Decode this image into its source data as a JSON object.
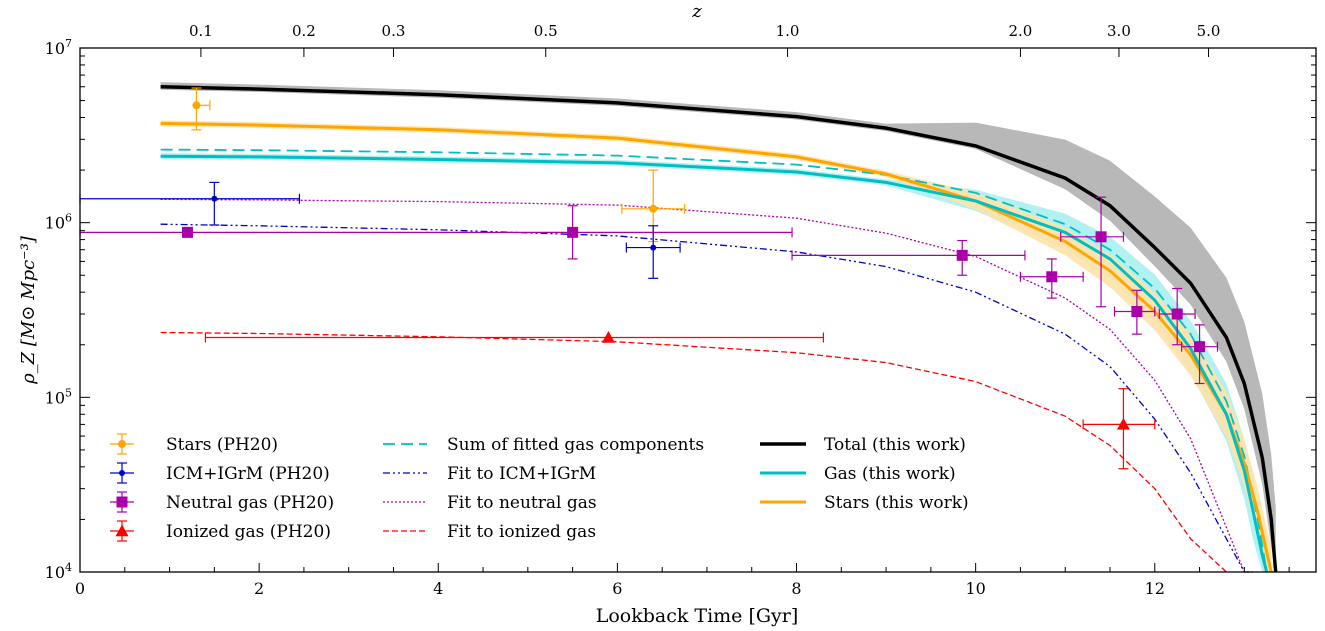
{
  "chart_data": {
    "type": "line",
    "xlabel": "Lookback Time [Gyr]",
    "ylabel": "ρ_Z [M⊙ Mpc⁻³]",
    "top_axis_label": "z",
    "xlim": [
      0,
      13.8
    ],
    "ylim": [
      10000,
      10000000
    ],
    "y_scale": "log",
    "x_ticks": [
      0,
      2,
      4,
      6,
      8,
      10,
      12
    ],
    "y_ticks": [
      {
        "value": 10000,
        "base": "10",
        "exp": "4"
      },
      {
        "value": 100000,
        "base": "10",
        "exp": "5"
      },
      {
        "value": 1000000,
        "base": "10",
        "exp": "6"
      },
      {
        "value": 10000000,
        "base": "10",
        "exp": "7"
      }
    ],
    "top_ticks": [
      {
        "z": "0.1",
        "t": 1.35
      },
      {
        "z": "0.2",
        "t": 2.5
      },
      {
        "z": "0.3",
        "t": 3.5
      },
      {
        "z": "0.5",
        "t": 5.2
      },
      {
        "z": "1.0",
        "t": 7.9
      },
      {
        "z": "2.0",
        "t": 10.5
      },
      {
        "z": "3.0",
        "t": 11.6
      },
      {
        "z": "5.0",
        "t": 12.6
      }
    ],
    "legend_col1": [
      "Stars (PH20)",
      "ICM+IGrM (PH20)",
      "Neutral gas (PH20)",
      "Ionized gas (PH20)"
    ],
    "legend_col2": [
      "Sum of fitted gas components",
      "Fit to ICM+IGrM",
      "Fit to neutral gas",
      "Fit to ionized gas"
    ],
    "legend_col3": [
      "Total (this work)",
      "Gas (this work)",
      "Stars (this work)"
    ],
    "colors": {
      "total": "#000000",
      "gas": "#00bfc4",
      "stars": "#ffa500",
      "icm": "#0000cc",
      "neutral": "#aa00aa",
      "ionized": "#ff0000",
      "total_band": "#b0b0b0",
      "gas_band": "#a8f0f0",
      "stars_band": "#ffe2a8"
    },
    "series": [
      {
        "name": "Total (this work)",
        "x": [
          0.9,
          2,
          4,
          6,
          8,
          9,
          10,
          11,
          11.5,
          12,
          12.4,
          12.8,
          13.0,
          13.2,
          13.3,
          13.35
        ],
        "y": [
          6000000,
          5820000,
          5400000,
          4850000,
          4050000,
          3480000,
          2750000,
          1800000,
          1250000,
          720000,
          450000,
          220000,
          120000,
          45000,
          20000,
          10000
        ]
      },
      {
        "name": "Gas (this work)",
        "x": [
          0.9,
          2,
          4,
          6,
          8,
          9,
          10,
          11,
          11.5,
          12,
          12.4,
          12.8,
          13.0,
          13.1,
          13.2,
          13.25
        ],
        "y": [
          2400000,
          2380000,
          2300000,
          2200000,
          1950000,
          1700000,
          1330000,
          880000,
          620000,
          360000,
          190000,
          80000,
          38000,
          22000,
          12500,
          10000
        ]
      },
      {
        "name": "Stars (this work)",
        "x": [
          0.9,
          2,
          4,
          6,
          8,
          9,
          10,
          11,
          11.5,
          12,
          12.4,
          12.8,
          13.0,
          13.15,
          13.25,
          13.3
        ],
        "y": [
          3700000,
          3620000,
          3400000,
          3050000,
          2380000,
          1900000,
          1330000,
          780000,
          530000,
          310000,
          175000,
          80000,
          42000,
          22000,
          13000,
          10000
        ]
      },
      {
        "name": "Sum of fitted gas components",
        "x": [
          0.9,
          2,
          4,
          6,
          8,
          9,
          10,
          11,
          11.5,
          12,
          12.4,
          12.8,
          13.0,
          13.15,
          13.25
        ],
        "y": [
          2620000,
          2600000,
          2530000,
          2420000,
          2150000,
          1880000,
          1480000,
          980000,
          700000,
          420000,
          230000,
          95000,
          46000,
          20000,
          10000
        ]
      },
      {
        "name": "Fit to ICM+IGrM",
        "x": [
          0.9,
          2,
          4,
          6,
          8,
          9,
          10,
          11,
          11.5,
          12,
          12.4,
          12.8,
          13.0,
          13.1
        ],
        "y": [
          980000,
          960000,
          910000,
          840000,
          680000,
          560000,
          400000,
          230000,
          150000,
          75000,
          37000,
          15500,
          10000,
          8000
        ]
      },
      {
        "name": "Fit to neutral gas",
        "x": [
          0.9,
          2,
          4,
          6,
          8,
          9,
          10,
          11,
          11.5,
          12,
          12.4,
          12.8,
          13.0,
          13.1
        ],
        "y": [
          1360000,
          1350000,
          1320000,
          1260000,
          1060000,
          870000,
          640000,
          370000,
          245000,
          125000,
          58000,
          18000,
          10000,
          8000
        ]
      },
      {
        "name": "Fit to ionized gas",
        "x": [
          0.9,
          2,
          4,
          6,
          8,
          9,
          10,
          11,
          11.5,
          12,
          12.4,
          12.8
        ],
        "y": [
          235000,
          232000,
          222000,
          208000,
          180000,
          158000,
          123000,
          78000,
          53000,
          30000,
          15500,
          9000
        ]
      }
    ],
    "data_points": [
      {
        "group": "Stars (PH20)",
        "x": 1.3,
        "y": 4700000,
        "xerr": [
          1.3,
          1.45
        ],
        "yerr": [
          3400000,
          5900000
        ]
      },
      {
        "group": "Stars (PH20)",
        "x": 6.4,
        "y": 1200000,
        "xerr": [
          6.05,
          6.75
        ],
        "yerr": [
          780000,
          2000000
        ]
      },
      {
        "group": "ICM+IGrM (PH20)",
        "x": 1.5,
        "y": 1370000,
        "xerr": [
          0.0,
          2.45
        ],
        "yerr": [
          970000,
          1700000
        ]
      },
      {
        "group": "ICM+IGrM (PH20)",
        "x": 6.4,
        "y": 720000,
        "xerr": [
          6.1,
          6.7
        ],
        "yerr": [
          480000,
          960000
        ]
      },
      {
        "group": "Neutral gas (PH20)",
        "x": 1.2,
        "y": 880000,
        "xerr": [
          0.0,
          7.95
        ],
        "yerr": [
          880000,
          880000
        ]
      },
      {
        "group": "Neutral gas (PH20)",
        "x": 5.5,
        "y": 880000,
        "xerr": [
          5.5,
          5.5
        ],
        "yerr": [
          620000,
          1250000
        ]
      },
      {
        "group": "Neutral gas (PH20)",
        "x": 9.85,
        "y": 650000,
        "xerr": [
          7.95,
          10.55
        ],
        "yerr": [
          500000,
          790000
        ]
      },
      {
        "group": "Neutral gas (PH20)",
        "x": 10.85,
        "y": 490000,
        "xerr": [
          10.5,
          11.2
        ],
        "yerr": [
          370000,
          620000
        ]
      },
      {
        "group": "Neutral gas (PH20)",
        "x": 11.4,
        "y": 830000,
        "xerr": [
          10.95,
          11.65
        ],
        "yerr": [
          330000,
          1400000
        ]
      },
      {
        "group": "Neutral gas (PH20)",
        "x": 11.8,
        "y": 310000,
        "xerr": [
          11.55,
          12.0
        ],
        "yerr": [
          230000,
          410000
        ]
      },
      {
        "group": "Neutral gas (PH20)",
        "x": 12.25,
        "y": 300000,
        "xerr": [
          12.05,
          12.45
        ],
        "yerr": [
          200000,
          420000
        ]
      },
      {
        "group": "Neutral gas (PH20)",
        "x": 12.5,
        "y": 195000,
        "xerr": [
          12.3,
          12.7
        ],
        "yerr": [
          120000,
          260000
        ]
      },
      {
        "group": "Ionized gas (PH20)",
        "x": 5.9,
        "y": 220000,
        "xerr": [
          1.4,
          8.3
        ],
        "yerr": [
          220000,
          220000
        ]
      },
      {
        "group": "Ionized gas (PH20)",
        "x": 11.65,
        "y": 70000,
        "xerr": [
          11.2,
          12.0
        ],
        "yerr": [
          39000,
          112000
        ]
      }
    ]
  }
}
